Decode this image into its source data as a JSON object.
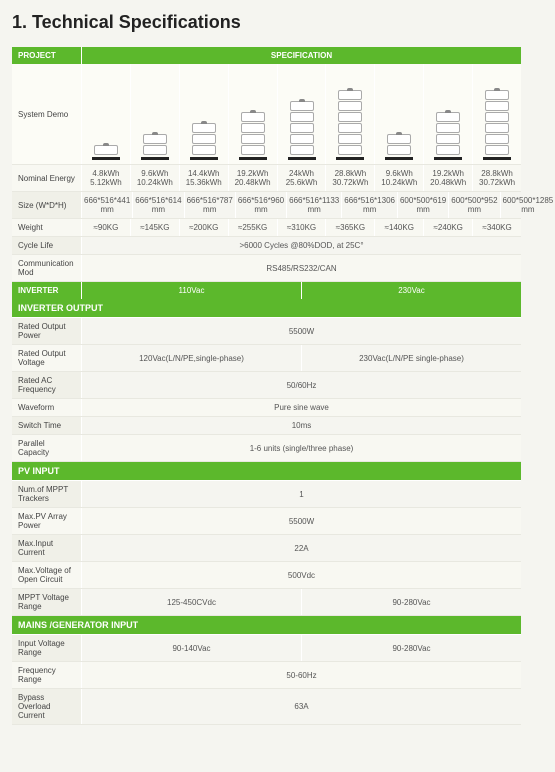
{
  "title": "1. Technical Specifications",
  "colors": {
    "accent": "#5cb82c",
    "bg": "#f5f5f0",
    "row_alt": "#f8f8f2",
    "label_bg": "#f0f0e8"
  },
  "project": {
    "project_label": "PROJECT",
    "spec_label": "SPECIFICATION",
    "system_demo_label": "System Demo",
    "stacks": [
      1,
      2,
      3,
      4,
      5,
      6,
      2,
      4,
      6
    ],
    "rows": [
      {
        "label": "Nominal Energy",
        "vals": [
          [
            "4.8kWh",
            "5.12kWh"
          ],
          [
            "9.6kWh",
            "10.24kWh"
          ],
          [
            "14.4kWh",
            "15.36kWh"
          ],
          [
            "19.2kWh",
            "20.48kWh"
          ],
          [
            "24kWh",
            "25.6kWh"
          ],
          [
            "28.8kWh",
            "30.72kWh"
          ],
          [
            "9.6kWh",
            "10.24kWh"
          ],
          [
            "19.2kWh",
            "20.48kWh"
          ],
          [
            "28.8kWh",
            "30.72kWh"
          ]
        ]
      },
      {
        "label": "Size (W*D*H)",
        "vals": [
          [
            "666*516*441",
            "mm"
          ],
          [
            "666*516*614",
            "mm"
          ],
          [
            "666*516*787",
            "mm"
          ],
          [
            "666*516*960",
            "mm"
          ],
          [
            "666*516*1133",
            "mm"
          ],
          [
            "666*516*1306",
            "mm"
          ],
          [
            "600*500*619",
            "mm"
          ],
          [
            "600*500*952",
            "mm"
          ],
          [
            "600*500*1285",
            "mm"
          ]
        ]
      },
      {
        "label": "Weight",
        "vals": [
          [
            "≈90KG"
          ],
          [
            "≈145KG"
          ],
          [
            "≈200KG"
          ],
          [
            "≈255KG"
          ],
          [
            "≈310KG"
          ],
          [
            "≈365KG"
          ],
          [
            "≈140KG"
          ],
          [
            "≈240KG"
          ],
          [
            "≈340KG"
          ]
        ]
      }
    ],
    "full_rows": [
      {
        "label": "Cycle Life",
        "value": ">6000 Cycles @80%DOD, at 25C°"
      },
      {
        "label": "Communication Mod",
        "value": "RS485/RS232/CAN"
      }
    ]
  },
  "inverter": {
    "header": "INVERTER",
    "left": "110Vac",
    "right": "230Vac"
  },
  "inverter_output": {
    "header": "INVERTER OUTPUT",
    "rows": [
      {
        "label": "Rated Output Power",
        "type": "full",
        "value": "5500W"
      },
      {
        "label": "Rated Output Voltage",
        "type": "half",
        "left": "120Vac(L/N/PE,single-phase)",
        "right": "230Vac(L/N/PE single-phase)"
      },
      {
        "label": "Rated AC Frequency",
        "type": "full",
        "value": "50/60Hz"
      },
      {
        "label": "Waveform",
        "type": "full",
        "value": "Pure sine wave"
      },
      {
        "label": "Switch Time",
        "type": "full",
        "value": "10ms"
      },
      {
        "label": "Parallel Capacity",
        "type": "full",
        "value": "1-6 units (single/three phase)"
      }
    ]
  },
  "pv_input": {
    "header": "PV INPUT",
    "rows": [
      {
        "label": "Num.of MPPT Trackers",
        "type": "full",
        "value": "1"
      },
      {
        "label": "Max.PV Array Power",
        "type": "full",
        "value": "5500W"
      },
      {
        "label": "Max.Input Current",
        "type": "full",
        "value": "22A"
      },
      {
        "label": "Max.Voltage of Open Circuit",
        "type": "full",
        "value": "500Vdc"
      },
      {
        "label": "MPPT Voltage Range",
        "type": "half",
        "left": "125-450CVdc",
        "right": "90-280Vac"
      }
    ]
  },
  "mains_input": {
    "header": "MAINS /GENERATOR INPUT",
    "rows": [
      {
        "label": "Input Voltage Range",
        "type": "half",
        "left": "90-140Vac",
        "right": "90-280Vac"
      },
      {
        "label": "Frequency Range",
        "type": "full",
        "value": "50-60Hz"
      },
      {
        "label": "Bypass Overload Current",
        "type": "full",
        "value": "63A"
      }
    ]
  }
}
